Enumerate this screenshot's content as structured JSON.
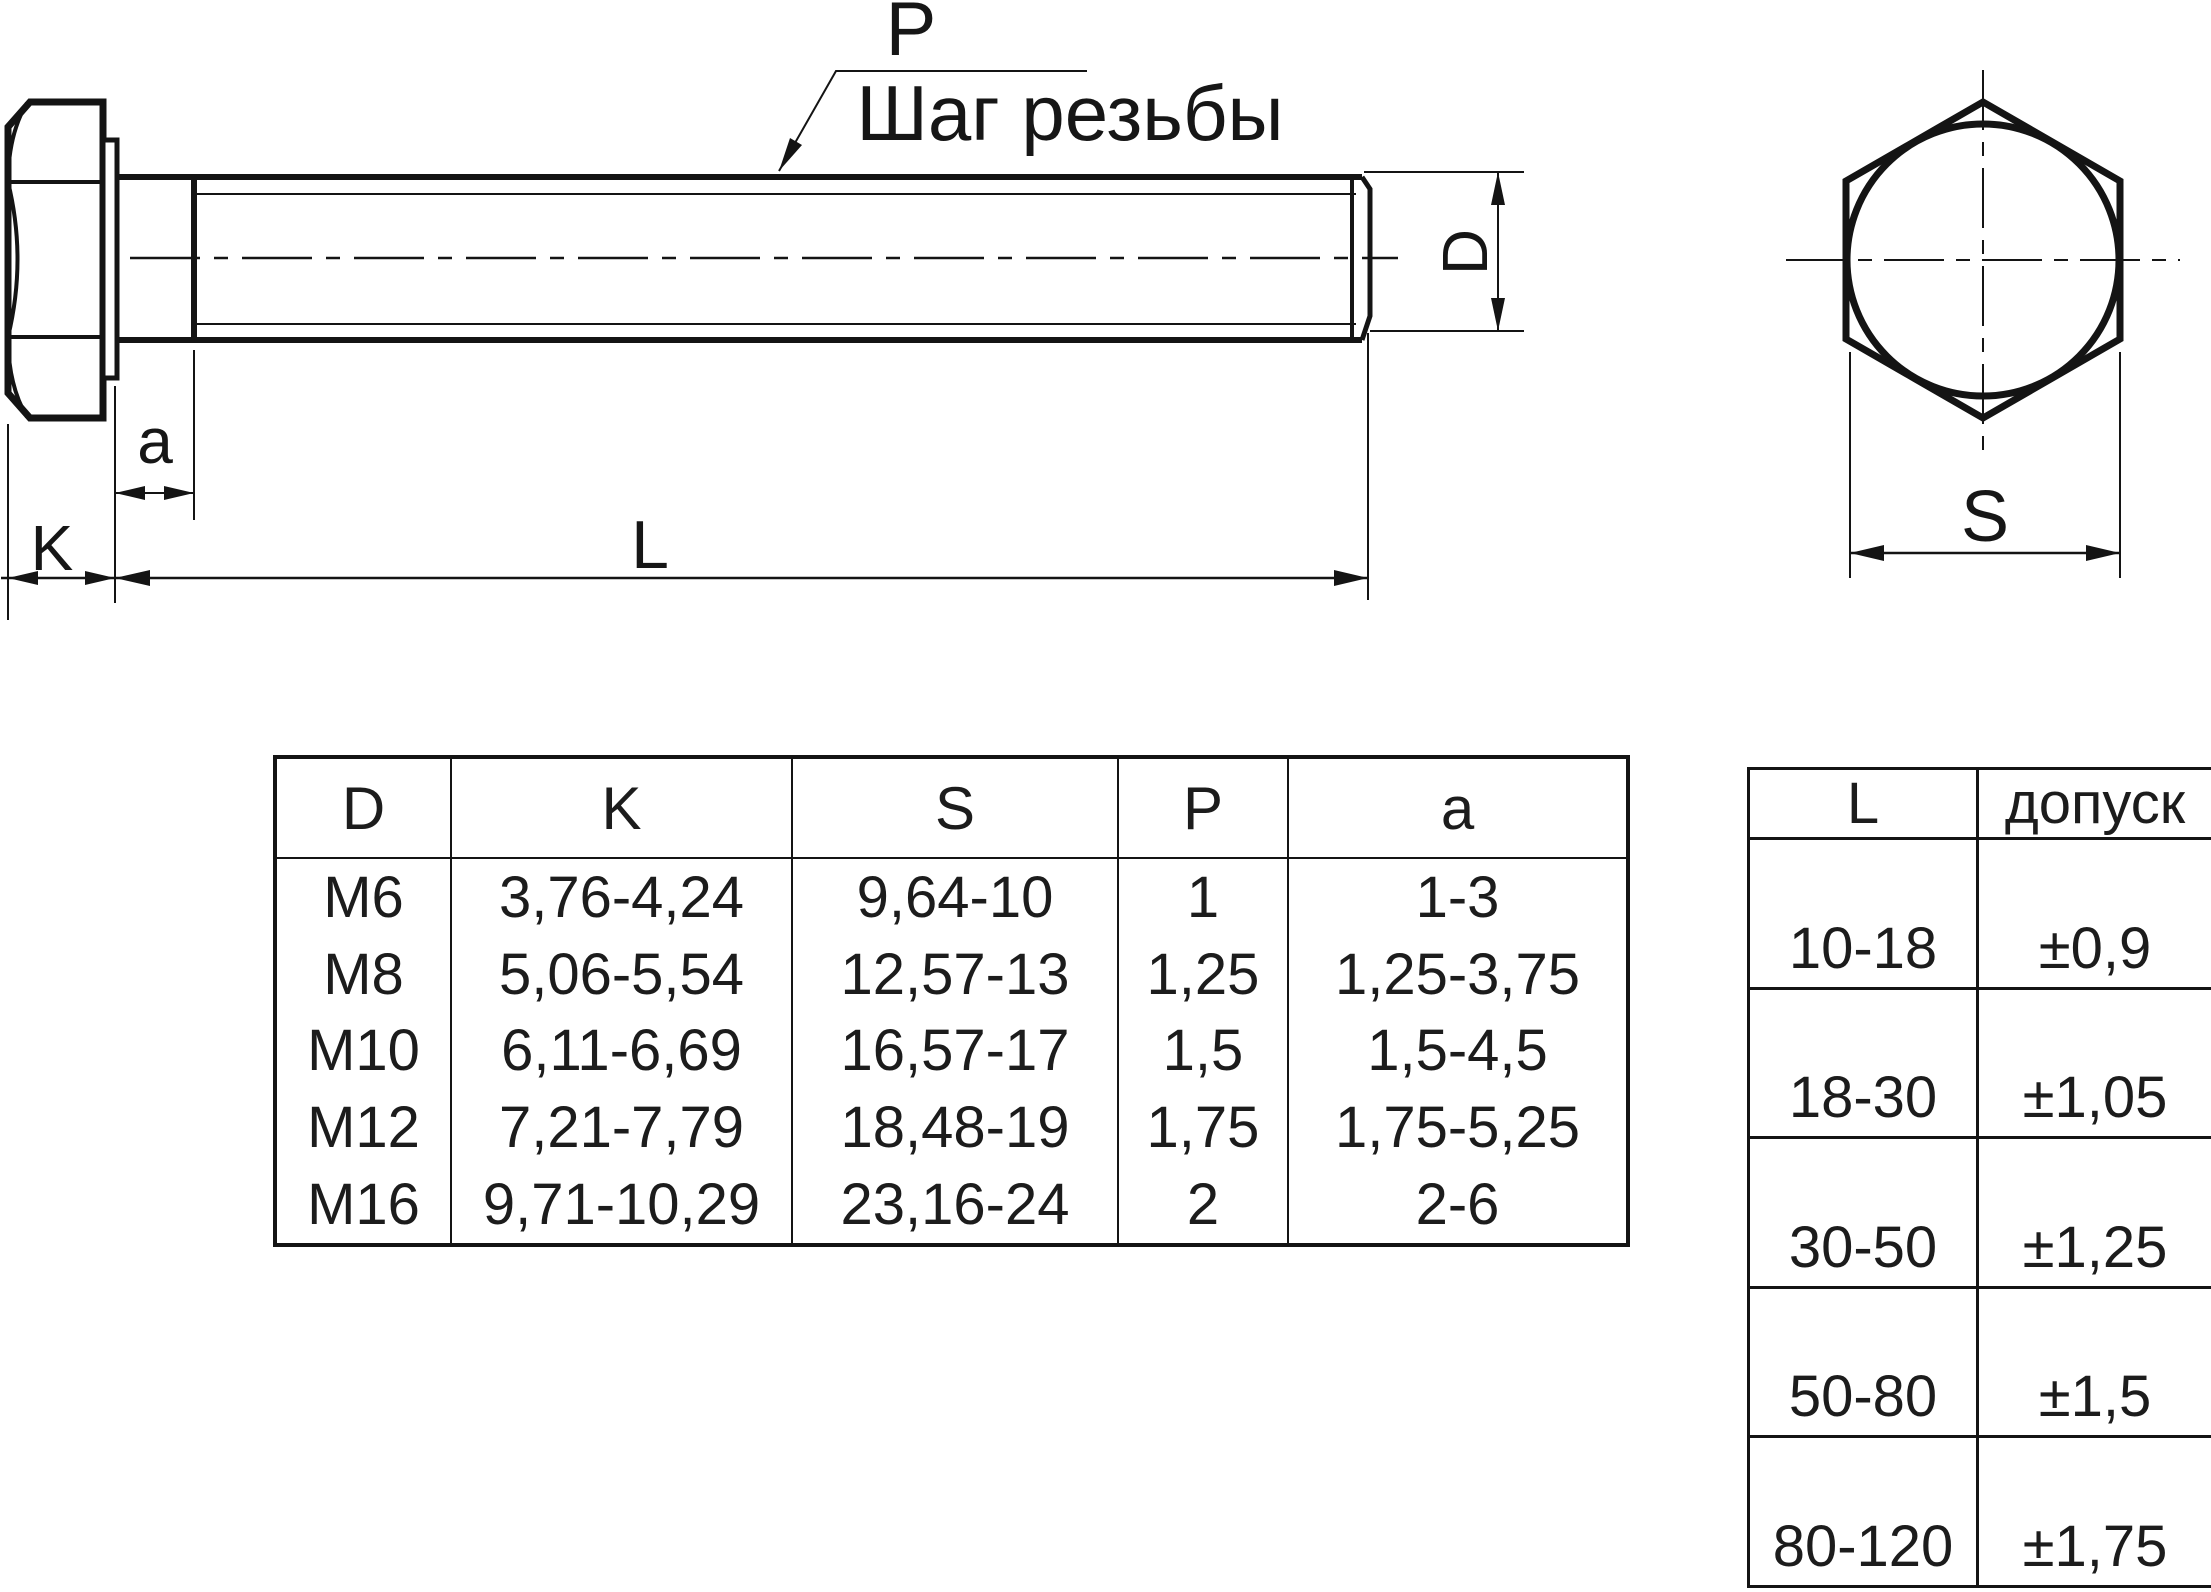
{
  "ink": "#141414",
  "drawing": {
    "labels": {
      "pitch_symbol": "P",
      "pitch_text": "Шаг резьбы",
      "grip": "a",
      "head_height": "K",
      "length": "L",
      "diameter": "D",
      "width_across_flats": "S"
    }
  },
  "main_table": {
    "columns": [
      "D",
      "K",
      "S",
      "P",
      "a"
    ],
    "rows": [
      [
        "M6",
        "3,76-4,24",
        "9,64-10",
        "1",
        "1-3"
      ],
      [
        "M8",
        "5,06-5,54",
        "12,57-13",
        "1,25",
        "1,25-3,75"
      ],
      [
        "M10",
        "6,11-6,69",
        "16,57-17",
        "1,5",
        "1,5-4,5"
      ],
      [
        "M12",
        "7,21-7,79",
        "18,48-19",
        "1,75",
        "1,75-5,25"
      ],
      [
        "M16",
        "9,71-10,29",
        "23,16-24",
        "2",
        "2-6"
      ]
    ]
  },
  "tolerance_table": {
    "columns": [
      "L",
      "допуск"
    ],
    "rows": [
      [
        "10-18",
        "±0,9"
      ],
      [
        "18-30",
        "±1,05"
      ],
      [
        "30-50",
        "±1,25"
      ],
      [
        "50-80",
        "±1,5"
      ],
      [
        "80-120",
        "±1,75"
      ]
    ]
  }
}
